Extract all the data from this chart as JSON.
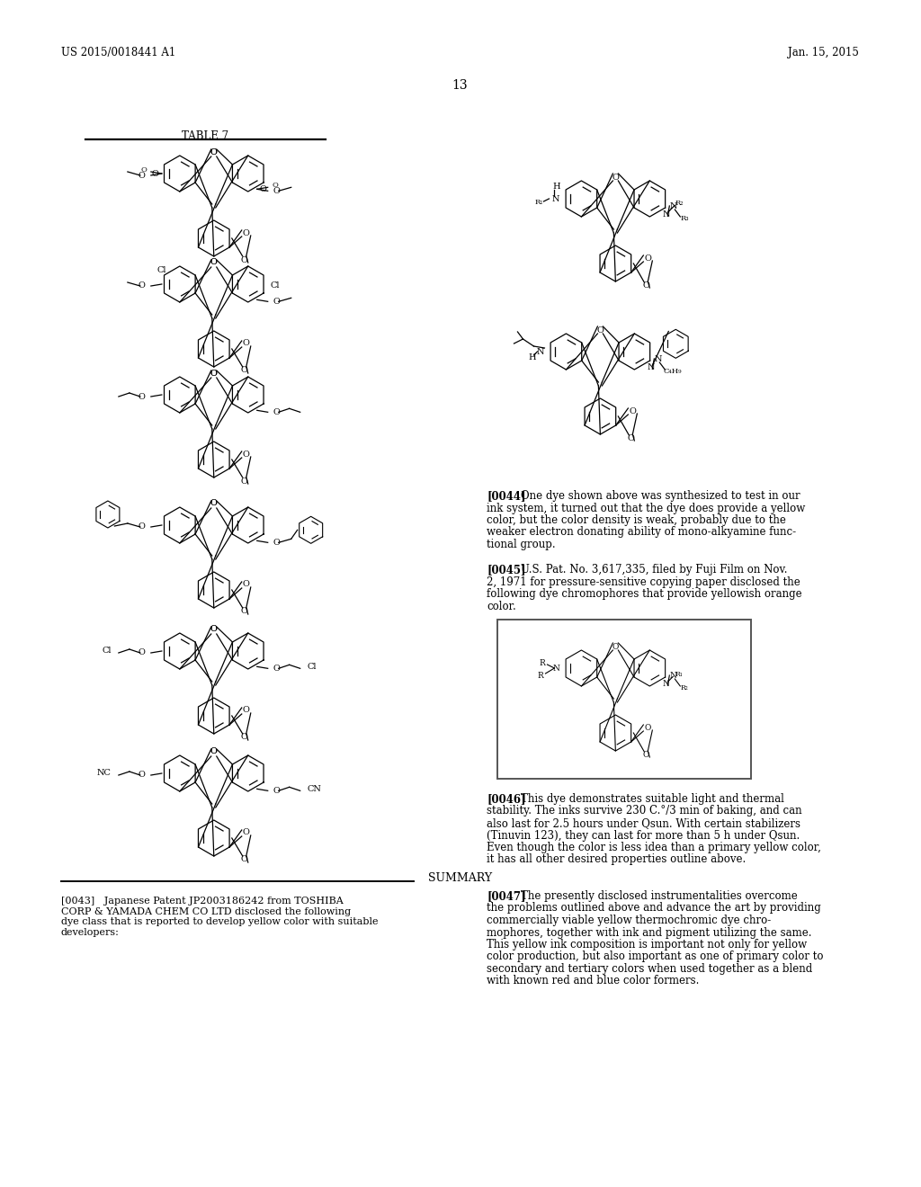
{
  "bg": "#ffffff",
  "header_left": "US 2015/0018441 A1",
  "header_right": "Jan. 15, 2015",
  "page_num": "13",
  "table_title": "TABLE 7",
  "p0043": "[0043]   Japanese Patent JP2003186242 from TOSHIBA\nCORP & YAMADA CHEM CO LTD disclosed the following\ndye class that is reported to develop yellow color with suitable\ndevelopers:",
  "p0044_bold": "[0044]",
  "p0044_body": "   One dye shown above was synthesized to test in our\nink system, it turned out that the dye does provide a yellow\ncolor, but the color density is weak, probably due to the\nweaker electron donating ability of mono-alkyamine func-\ntional group.",
  "p0045_bold": "[0045]",
  "p0045_body": "   U.S. Pat. No. 3,617,335, filed by Fuji Film on Nov.\n2, 1971 for pressure-sensitive copying paper disclosed the\nfollowing dye chromophores that provide yellowish orange\ncolor.",
  "p0046_bold": "[0046]",
  "p0046_body": "   This dye demonstrates suitable light and thermal\nstability. The inks survive 230 C.°/3 min of baking, and can\nalso last for 2.5 hours under Qsun. With certain stabilizers\n(Tinuvin 123), they can last for more than 5 h under Qsun.\nEven though the color is less idea than a primary yellow color,\nit has all other desired properties outline above.",
  "summary_title": "SUMMARY",
  "p0047_bold": "[0047]",
  "p0047_body": "   The presently disclosed instrumentalities overcome\nthe problems outlined above and advance the art by providing\ncommercially viable yellow thermochromic dye chro-\nmophores, together with ink and pigment utilizing the same.\nThis yellow ink composition is important not only for yellow\ncolor production, but also important as one of primary color to\nsecondary and tertiary colors when used together as a blend\nwith known red and blue color formers."
}
